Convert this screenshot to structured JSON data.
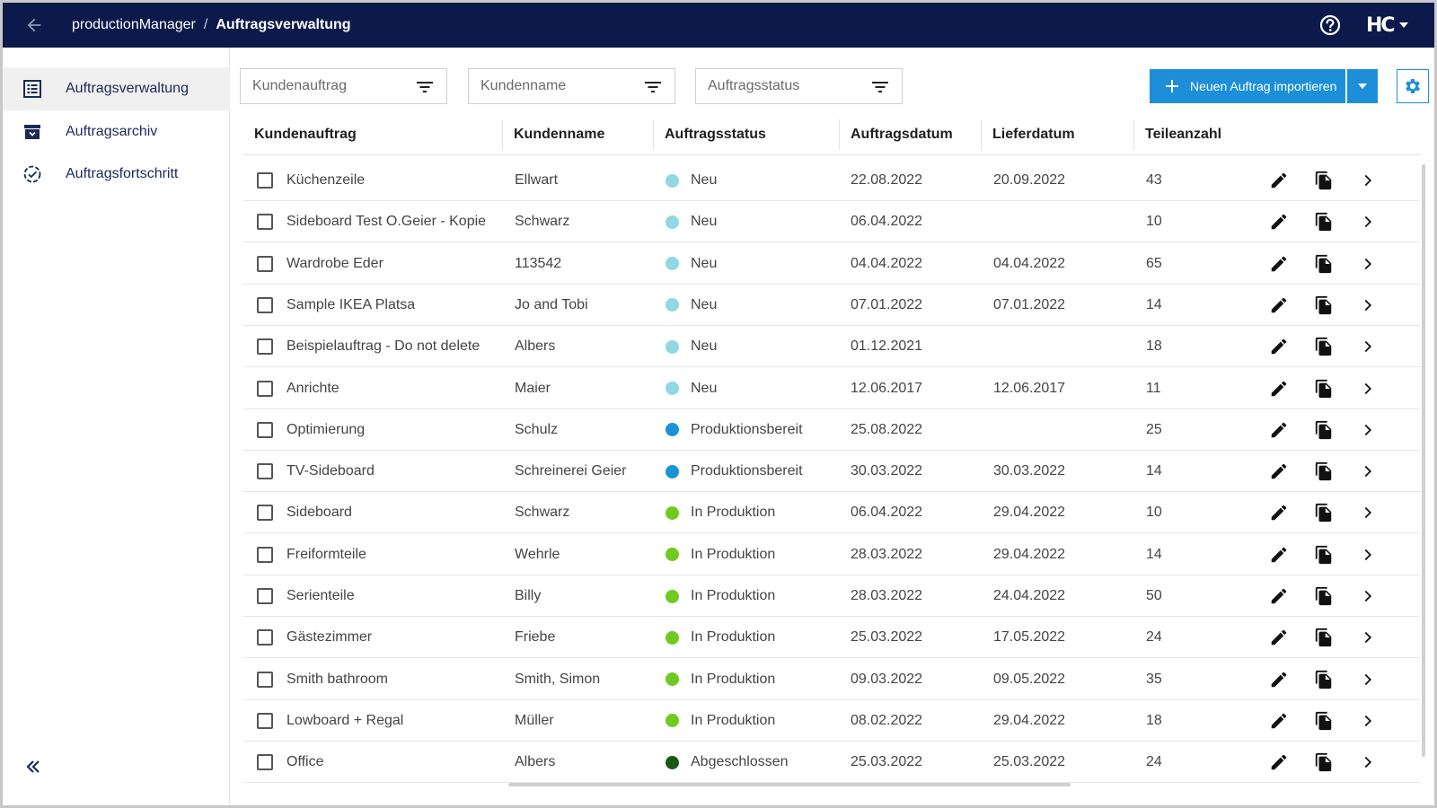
{
  "header": {
    "app_name": "productionManager",
    "separator": "/",
    "current_page": "Auftragsverwaltung",
    "brand": "HC"
  },
  "sidebar": {
    "items": [
      {
        "label": "Auftragsverwaltung",
        "icon": "list-icon",
        "active": true
      },
      {
        "label": "Auftragsarchiv",
        "icon": "archive-icon",
        "active": false
      },
      {
        "label": "Auftragsfortschritt",
        "icon": "progress-check-icon",
        "active": false
      }
    ]
  },
  "filters": {
    "customer_order_placeholder": "Kundenauftrag",
    "customer_name_placeholder": "Kundenname",
    "order_status_placeholder": "Auftragsstatus"
  },
  "toolbar": {
    "import_label": "Neuen Auftrag importieren"
  },
  "table": {
    "headers": [
      "Kundenauftrag",
      "Kundenname",
      "Auftragsstatus",
      "Auftragsdatum",
      "Lieferdatum",
      "Teileanzahl"
    ],
    "status_colors": {
      "Neu": "#8fd8e4",
      "Produktionsbereit": "#1b93d7",
      "In Produktion": "#6fcb1f",
      "Abgeschlossen": "#1a5a16"
    },
    "rows": [
      {
        "order": "Küchenzeile",
        "customer": "Ellwart",
        "status": "Neu",
        "order_date": "22.08.2022",
        "delivery_date": "20.09.2022",
        "parts": "43"
      },
      {
        "order": "Sideboard Test O.Geier - Kopie",
        "customer": "Schwarz",
        "status": "Neu",
        "order_date": "06.04.2022",
        "delivery_date": "",
        "parts": "10"
      },
      {
        "order": "Wardrobe Eder",
        "customer": "113542",
        "status": "Neu",
        "order_date": "04.04.2022",
        "delivery_date": "04.04.2022",
        "parts": "65"
      },
      {
        "order": "Sample IKEA Platsa",
        "customer": "Jo and Tobi",
        "status": "Neu",
        "order_date": "07.01.2022",
        "delivery_date": "07.01.2022",
        "parts": "14"
      },
      {
        "order": "Beispielauftrag - Do not delete",
        "customer": "Albers",
        "status": "Neu",
        "order_date": "01.12.2021",
        "delivery_date": "",
        "parts": "18"
      },
      {
        "order": "Anrichte",
        "customer": "Maier",
        "status": "Neu",
        "order_date": "12.06.2017",
        "delivery_date": "12.06.2017",
        "parts": "11"
      },
      {
        "order": "Optimierung",
        "customer": "Schulz",
        "status": "Produktionsbereit",
        "order_date": "25.08.2022",
        "delivery_date": "",
        "parts": "25"
      },
      {
        "order": "TV-Sideboard",
        "customer": "Schreinerei Geier",
        "status": "Produktionsbereit",
        "order_date": "30.03.2022",
        "delivery_date": "30.03.2022",
        "parts": "14"
      },
      {
        "order": "Sideboard",
        "customer": "Schwarz",
        "status": "In Produktion",
        "order_date": "06.04.2022",
        "delivery_date": "29.04.2022",
        "parts": "10"
      },
      {
        "order": "Freiformteile",
        "customer": "Wehrle",
        "status": "In Produktion",
        "order_date": "28.03.2022",
        "delivery_date": "29.04.2022",
        "parts": "14"
      },
      {
        "order": "Serienteile",
        "customer": "Billy",
        "status": "In Produktion",
        "order_date": "28.03.2022",
        "delivery_date": "24.04.2022",
        "parts": "50"
      },
      {
        "order": "Gästezimmer",
        "customer": "Friebe",
        "status": "In Produktion",
        "order_date": "25.03.2022",
        "delivery_date": "17.05.2022",
        "parts": "24"
      },
      {
        "order": "Smith bathroom",
        "customer": "Smith, Simon",
        "status": "In Produktion",
        "order_date": "09.03.2022",
        "delivery_date": "09.05.2022",
        "parts": "35"
      },
      {
        "order": "Lowboard + Regal",
        "customer": "Müller",
        "status": "In Produktion",
        "order_date": "08.02.2022",
        "delivery_date": "29.04.2022",
        "parts": "18"
      },
      {
        "order": "Office",
        "customer": "Albers",
        "status": "Abgeschlossen",
        "order_date": "25.03.2022",
        "delivery_date": "25.03.2022",
        "parts": "24"
      }
    ]
  }
}
